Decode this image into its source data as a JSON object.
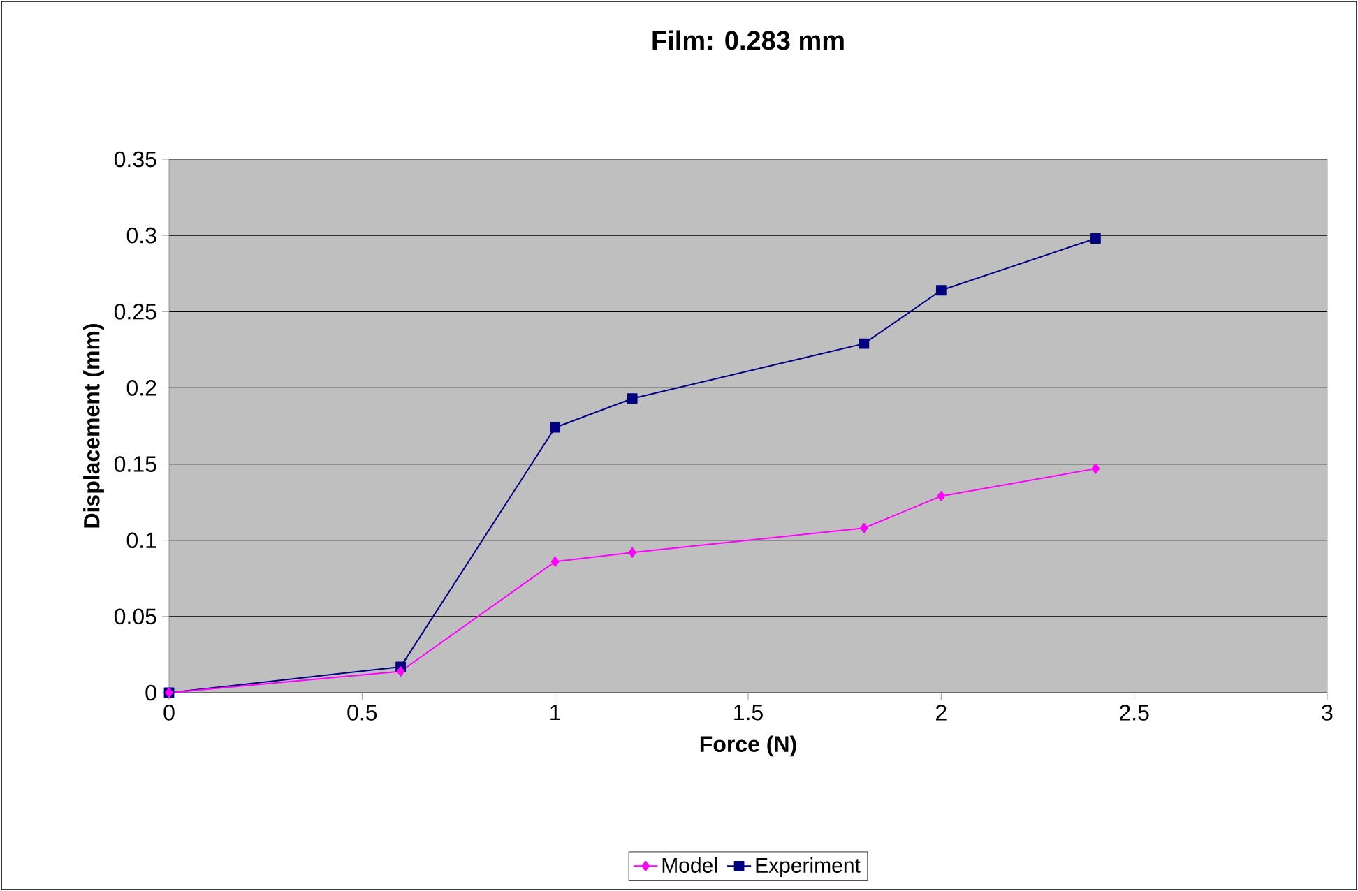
{
  "chart_data": {
    "type": "line",
    "title": "Film: 0.283 mm",
    "xlabel": "Force (N)",
    "ylabel": "Displacement (mm)",
    "x": [
      0,
      0.6,
      1,
      1.2,
      1.8,
      2,
      2.4
    ],
    "series": [
      {
        "name": "Model",
        "color": "#ff00ff",
        "marker": "diamond",
        "values": [
          0,
          0.014,
          0.086,
          0.092,
          0.108,
          0.129,
          0.147
        ]
      },
      {
        "name": "Experiment",
        "color": "#000080",
        "marker": "square",
        "values": [
          0,
          0.017,
          0.174,
          0.193,
          0.229,
          0.264,
          0.298
        ]
      }
    ],
    "xlim": [
      0,
      3
    ],
    "xticks": [
      0,
      0.5,
      1,
      1.5,
      2,
      2.5,
      3
    ],
    "ylim": [
      0,
      0.35
    ],
    "yticks": [
      0,
      0.05,
      0.1,
      0.15,
      0.2,
      0.25,
      0.3,
      0.35
    ],
    "grid": "y",
    "legend": "bottom",
    "line_style": "solid"
  }
}
